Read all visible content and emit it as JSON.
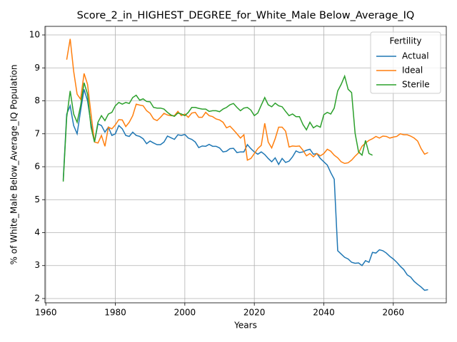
{
  "chart_data": {
    "type": "line",
    "title": "Score_2_in_HIGHEST_DEGREE_for_White_Male Below_Average_IQ",
    "x_label": "Years",
    "y_label": "% of White_Male Below_Average_IQ Population",
    "legend_title": "Fertility",
    "legend_position": "upper right",
    "grid": true,
    "xlim": [
      1959.75,
      2075.25
    ],
    "ylim": [
      1.87,
      10.26
    ],
    "xticks": [
      1960,
      1980,
      2000,
      2020,
      2040,
      2060
    ],
    "yticks": [
      2,
      3,
      4,
      5,
      6,
      7,
      8,
      9,
      10
    ],
    "x": [
      1965,
      1966,
      1967,
      1968,
      1969,
      1970,
      1971,
      1972,
      1973,
      1974,
      1975,
      1976,
      1977,
      1978,
      1979,
      1980,
      1981,
      1982,
      1983,
      1984,
      1985,
      1986,
      1987,
      1988,
      1989,
      1990,
      1991,
      1992,
      1993,
      1994,
      1995,
      1996,
      1997,
      1998,
      1999,
      2000,
      2001,
      2002,
      2003,
      2004,
      2005,
      2006,
      2007,
      2008,
      2009,
      2010,
      2011,
      2012,
      2013,
      2014,
      2015,
      2016,
      2017,
      2018,
      2019,
      2020,
      2021,
      2022,
      2023,
      2024,
      2025,
      2026,
      2027,
      2028,
      2029,
      2030,
      2031,
      2032,
      2033,
      2034,
      2035,
      2036,
      2037,
      2038,
      2039,
      2040,
      2041,
      2042,
      2043,
      2044,
      2045,
      2046,
      2047,
      2048,
      2049,
      2050,
      2051,
      2052,
      2053,
      2054,
      2055,
      2056,
      2057,
      2058,
      2059,
      2060,
      2061,
      2062,
      2063,
      2064,
      2065,
      2066,
      2067,
      2068,
      2069,
      2070
    ],
    "series": [
      {
        "name": "Actual",
        "color": "#1f77b4",
        "values": [
          5.6,
          7.6,
          7.85,
          7.25,
          7.0,
          7.7,
          8.35,
          8.0,
          7.3,
          6.75,
          7.3,
          7.25,
          7.05,
          7.2,
          6.95,
          7.0,
          7.25,
          7.15,
          6.95,
          6.92,
          7.05,
          6.95,
          6.92,
          6.85,
          6.7,
          6.78,
          6.72,
          6.67,
          6.67,
          6.75,
          6.93,
          6.88,
          6.83,
          6.97,
          6.95,
          6.98,
          6.87,
          6.83,
          6.75,
          6.58,
          6.63,
          6.62,
          6.68,
          6.62,
          6.62,
          6.57,
          6.45,
          6.47,
          6.55,
          6.56,
          6.43,
          6.45,
          6.45,
          6.67,
          6.55,
          6.45,
          6.38,
          6.45,
          6.37,
          6.25,
          6.15,
          6.27,
          6.07,
          6.25,
          6.13,
          6.17,
          6.3,
          6.48,
          6.43,
          6.45,
          6.5,
          6.53,
          6.38,
          6.4,
          6.25,
          6.15,
          6.05,
          5.82,
          5.62,
          3.45,
          3.35,
          3.25,
          3.2,
          3.1,
          3.07,
          3.08,
          3.0,
          3.15,
          3.1,
          3.4,
          3.38,
          3.48,
          3.45,
          3.38,
          3.28,
          3.2,
          3.1,
          2.98,
          2.88,
          2.72,
          2.65,
          2.52,
          2.43,
          2.35,
          2.25,
          2.27
        ]
      },
      {
        "name": "Ideal",
        "color": "#ff7f0e",
        "values": [
          null,
          9.25,
          9.88,
          8.9,
          8.2,
          8.05,
          8.83,
          8.5,
          7.6,
          6.75,
          6.72,
          6.95,
          6.62,
          7.2,
          7.15,
          7.27,
          7.43,
          7.42,
          7.22,
          7.35,
          7.55,
          7.9,
          7.87,
          7.85,
          7.7,
          7.62,
          7.45,
          7.4,
          7.5,
          7.62,
          7.57,
          7.55,
          7.55,
          7.68,
          7.55,
          7.6,
          7.5,
          7.63,
          7.65,
          7.5,
          7.5,
          7.65,
          7.55,
          7.52,
          7.45,
          7.42,
          7.35,
          7.18,
          7.23,
          7.12,
          7.0,
          6.87,
          6.97,
          6.2,
          6.25,
          6.4,
          6.55,
          6.65,
          7.32,
          6.75,
          6.57,
          6.85,
          7.2,
          7.2,
          7.08,
          6.6,
          6.63,
          6.62,
          6.63,
          6.5,
          6.33,
          6.4,
          6.3,
          6.4,
          6.33,
          6.4,
          6.53,
          6.47,
          6.35,
          6.27,
          6.15,
          6.1,
          6.12,
          6.2,
          6.32,
          6.42,
          6.62,
          6.72,
          6.8,
          6.85,
          6.92,
          6.87,
          6.93,
          6.92,
          6.87,
          6.9,
          6.92,
          7.0,
          6.97,
          6.97,
          6.93,
          6.87,
          6.78,
          6.55,
          6.38,
          6.43
        ]
      },
      {
        "name": "Sterile",
        "color": "#2ca02c",
        "values": [
          5.55,
          7.5,
          8.3,
          7.6,
          7.35,
          7.85,
          8.55,
          8.2,
          7.2,
          6.75,
          7.35,
          7.55,
          7.4,
          7.6,
          7.65,
          7.85,
          7.95,
          7.9,
          7.95,
          7.92,
          8.1,
          8.17,
          8.02,
          8.06,
          7.98,
          7.97,
          7.8,
          7.78,
          7.78,
          7.75,
          7.65,
          7.57,
          7.53,
          7.63,
          7.6,
          7.55,
          7.65,
          7.8,
          7.8,
          7.77,
          7.75,
          7.75,
          7.68,
          7.7,
          7.7,
          7.67,
          7.75,
          7.8,
          7.88,
          7.92,
          7.8,
          7.7,
          7.78,
          7.8,
          7.72,
          7.55,
          7.63,
          7.87,
          8.1,
          7.88,
          7.82,
          7.93,
          7.85,
          7.82,
          7.68,
          7.55,
          7.6,
          7.52,
          7.52,
          7.28,
          7.12,
          7.35,
          7.18,
          7.25,
          7.2,
          7.58,
          7.65,
          7.6,
          7.78,
          8.3,
          8.5,
          8.75,
          8.35,
          8.25,
          7.02,
          6.45,
          6.35,
          6.8,
          6.4,
          6.35,
          null,
          null,
          null,
          null,
          null,
          null,
          null,
          null,
          null,
          null,
          null,
          null,
          null,
          null,
          null,
          null
        ]
      }
    ]
  }
}
